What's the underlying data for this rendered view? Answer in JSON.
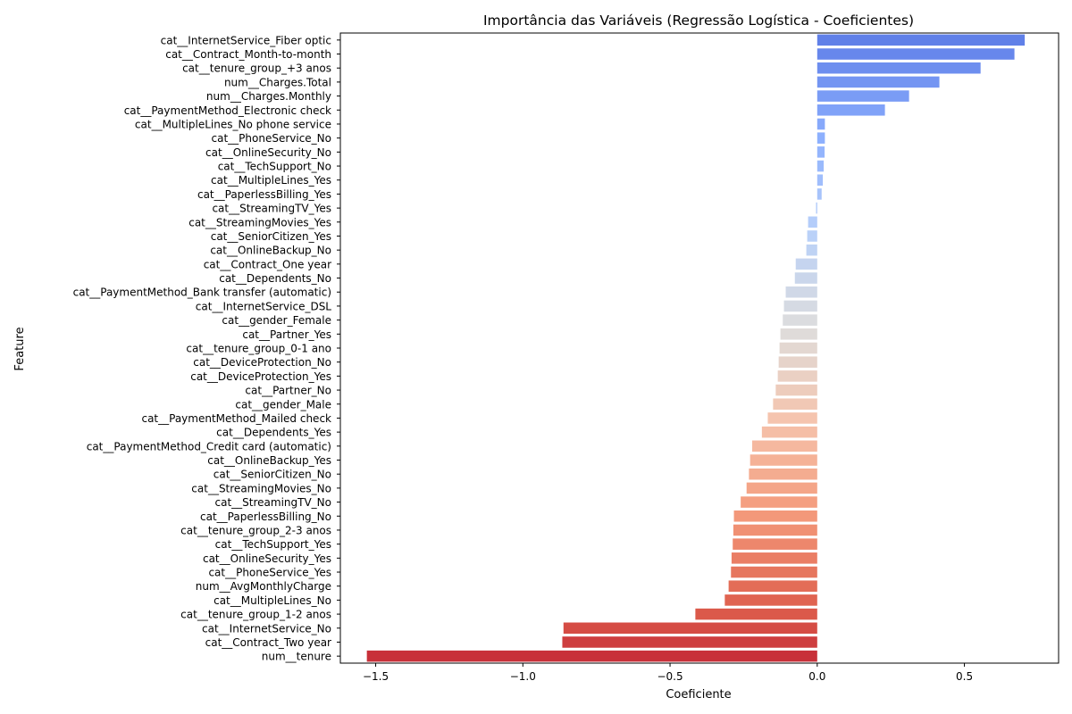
{
  "chart_data": {
    "type": "bar",
    "orientation": "horizontal",
    "title": "Importância das Variáveis (Regressão Logística - Coeficientes)",
    "xlabel": "Coeficiente",
    "ylabel": "Feature",
    "xlim": [
      -1.62,
      0.82
    ],
    "xticks": [
      -1.5,
      -1.0,
      -0.5,
      0.0,
      0.5
    ],
    "xtick_labels": [
      "−1.5",
      "−1.0",
      "−0.5",
      "0.0",
      "0.5"
    ],
    "grid": false,
    "legend": "none",
    "palette": "coolwarm",
    "categories": [
      "cat__InternetService_Fiber optic",
      "cat__Contract_Month-to-month",
      "cat__tenure_group_+3 anos",
      "num__Charges.Total",
      "num__Charges.Monthly",
      "cat__PaymentMethod_Electronic check",
      "cat__MultipleLines_No phone service",
      "cat__PhoneService_No",
      "cat__OnlineSecurity_No",
      "cat__TechSupport_No",
      "cat__MultipleLines_Yes",
      "cat__PaperlessBilling_Yes",
      "cat__StreamingTV_Yes",
      "cat__StreamingMovies_Yes",
      "cat__SeniorCitizen_Yes",
      "cat__OnlineBackup_No",
      "cat__Contract_One year",
      "cat__Dependents_No",
      "cat__PaymentMethod_Bank transfer (automatic)",
      "cat__InternetService_DSL",
      "cat__gender_Female",
      "cat__Partner_Yes",
      "cat__tenure_group_0-1 ano",
      "cat__DeviceProtection_No",
      "cat__DeviceProtection_Yes",
      "cat__Partner_No",
      "cat__gender_Male",
      "cat__PaymentMethod_Mailed check",
      "cat__Dependents_Yes",
      "cat__PaymentMethod_Credit card (automatic)",
      "cat__OnlineBackup_Yes",
      "cat__SeniorCitizen_No",
      "cat__StreamingMovies_No",
      "cat__StreamingTV_No",
      "cat__PaperlessBilling_No",
      "cat__tenure_group_2-3 anos",
      "cat__TechSupport_Yes",
      "cat__OnlineSecurity_Yes",
      "cat__PhoneService_Yes",
      "num__AvgMonthlyCharge",
      "cat__MultipleLines_No",
      "cat__tenure_group_1-2 anos",
      "cat__InternetService_No",
      "cat__Contract_Two year",
      "num__tenure"
    ],
    "values": [
      0.705,
      0.67,
      0.555,
      0.415,
      0.312,
      0.23,
      0.026,
      0.026,
      0.025,
      0.022,
      0.019,
      0.015,
      -0.004,
      -0.031,
      -0.034,
      -0.037,
      -0.073,
      -0.076,
      -0.107,
      -0.113,
      -0.117,
      -0.125,
      -0.128,
      -0.131,
      -0.134,
      -0.141,
      -0.15,
      -0.168,
      -0.188,
      -0.221,
      -0.228,
      -0.232,
      -0.24,
      -0.26,
      -0.283,
      -0.285,
      -0.287,
      -0.291,
      -0.293,
      -0.301,
      -0.314,
      -0.414,
      -0.862,
      -0.866,
      -1.53
    ]
  }
}
